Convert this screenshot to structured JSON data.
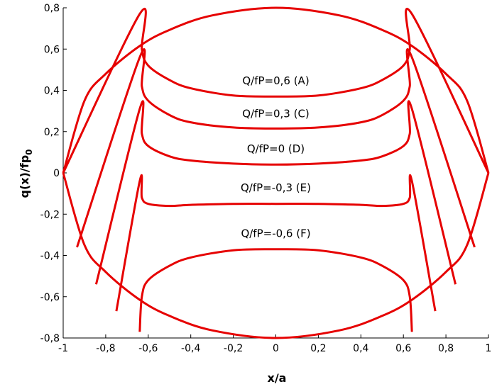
{
  "chart_data": {
    "type": "line",
    "title": "",
    "xlabel": "x/a",
    "ylabel_main": "q(x)/fp",
    "ylabel_sub": "0",
    "xlim": [
      -1,
      1
    ],
    "ylim": [
      -0.8,
      0.8
    ],
    "xticks": [
      {
        "v": -1,
        "label": "-1"
      },
      {
        "v": -0.8,
        "label": "-0,8"
      },
      {
        "v": -0.6,
        "label": "-0,6"
      },
      {
        "v": -0.4,
        "label": "-0,4"
      },
      {
        "v": -0.2,
        "label": "-0,2"
      },
      {
        "v": 0,
        "label": "0"
      },
      {
        "v": 0.2,
        "label": "0,2"
      },
      {
        "v": 0.4,
        "label": "0,4"
      },
      {
        "v": 0.6,
        "label": "0,6"
      },
      {
        "v": 0.8,
        "label": "0,8"
      },
      {
        "v": 1,
        "label": "1"
      }
    ],
    "yticks": [
      {
        "v": 0.8,
        "label": "0,8"
      },
      {
        "v": 0.6,
        "label": "0,6"
      },
      {
        "v": 0.4,
        "label": "0,4"
      },
      {
        "v": 0.2,
        "label": "0,2"
      },
      {
        "v": 0,
        "label": "0"
      },
      {
        "v": -0.2,
        "label": "-0,2"
      },
      {
        "v": -0.4,
        "label": "-0,4"
      },
      {
        "v": -0.6,
        "label": "-0,6"
      },
      {
        "v": -0.8,
        "label": "-0,8"
      }
    ],
    "grid": false,
    "line_color": "#e60000",
    "semicircle": {
      "upper": {
        "x": [
          -1,
          -0.9,
          -0.8,
          -0.64,
          -0.5,
          -0.3,
          0,
          0.3,
          0.5,
          0.64,
          0.8,
          0.9,
          1
        ],
        "y": [
          0,
          0.349,
          0.48,
          0.615,
          0.693,
          0.763,
          0.8,
          0.763,
          0.693,
          0.615,
          0.48,
          0.349,
          0
        ]
      },
      "lower": {
        "x": [
          -1,
          -0.9,
          -0.8,
          -0.64,
          -0.5,
          -0.3,
          0,
          0.3,
          0.5,
          0.64,
          0.8,
          0.9,
          1
        ],
        "y": [
          0,
          -0.349,
          -0.48,
          -0.615,
          -0.693,
          -0.763,
          -0.8,
          -0.763,
          -0.693,
          -0.615,
          -0.48,
          -0.349,
          0
        ]
      }
    },
    "series": [
      {
        "label": "Q/fP=0,6 (A)",
        "x": [
          -1,
          -0.64,
          -0.63,
          -0.6,
          -0.5,
          -0.4,
          -0.2,
          0,
          0.2,
          0.4,
          0.5,
          0.6,
          0.63,
          0.64,
          1
        ],
        "y": [
          0,
          0.77,
          0.6,
          0.52,
          0.45,
          0.41,
          0.375,
          0.37,
          0.375,
          0.41,
          0.45,
          0.52,
          0.6,
          0.77,
          0
        ]
      },
      {
        "label": "Q/fP=0,3 (C)",
        "x": [
          -0.935,
          -0.64,
          -0.63,
          -0.6,
          -0.5,
          -0.4,
          -0.2,
          0,
          0.2,
          0.4,
          0.5,
          0.6,
          0.63,
          0.64,
          0.935
        ],
        "y": [
          -0.36,
          0.56,
          0.42,
          0.35,
          0.28,
          0.245,
          0.22,
          0.215,
          0.22,
          0.245,
          0.28,
          0.35,
          0.42,
          0.56,
          -0.36
        ]
      },
      {
        "label": "Q/fP=0 (D)",
        "x": [
          -0.845,
          -0.64,
          -0.63,
          -0.6,
          -0.5,
          -0.4,
          -0.2,
          0,
          0.2,
          0.4,
          0.5,
          0.6,
          0.63,
          0.64,
          0.845
        ],
        "y": [
          -0.54,
          0.31,
          0.19,
          0.13,
          0.08,
          0.06,
          0.045,
          0.04,
          0.045,
          0.06,
          0.08,
          0.13,
          0.19,
          0.31,
          -0.54
        ]
      },
      {
        "label": "Q/fP=-0,3 (E)",
        "x": [
          -0.75,
          -0.64,
          -0.63,
          -0.6,
          -0.5,
          -0.4,
          -0.2,
          0,
          0.2,
          0.4,
          0.5,
          0.6,
          0.63,
          0.64,
          0.75
        ],
        "y": [
          -0.67,
          -0.04,
          -0.12,
          -0.15,
          -0.16,
          -0.155,
          -0.15,
          -0.15,
          -0.15,
          -0.155,
          -0.16,
          -0.15,
          -0.12,
          -0.04,
          -0.67
        ]
      },
      {
        "label": "Q/fP=-0,6 (F)",
        "x": [
          -0.64,
          -0.63,
          -0.6,
          -0.5,
          -0.4,
          -0.2,
          0,
          0.2,
          0.4,
          0.5,
          0.6,
          0.63,
          0.64
        ],
        "y": [
          -0.77,
          -0.6,
          -0.52,
          -0.45,
          -0.41,
          -0.375,
          -0.37,
          -0.375,
          -0.41,
          -0.45,
          -0.52,
          -0.6,
          -0.77
        ]
      }
    ],
    "annotations": [
      {
        "name": "label-a",
        "text": "Q/fP=0,6 (A)",
        "x": 0,
        "y": 0.43
      },
      {
        "name": "label-c",
        "text": "Q/fP=0,3 (C)",
        "x": 0,
        "y": 0.27
      },
      {
        "name": "label-d",
        "text": "Q/fP=0 (D)",
        "x": 0,
        "y": 0.1
      },
      {
        "name": "label-e",
        "text": "Q/fP=-0,3 (E)",
        "x": 0,
        "y": -0.09
      },
      {
        "name": "label-f",
        "text": "Q/fP=-0,6 (F)",
        "x": 0,
        "y": -0.31
      }
    ]
  }
}
